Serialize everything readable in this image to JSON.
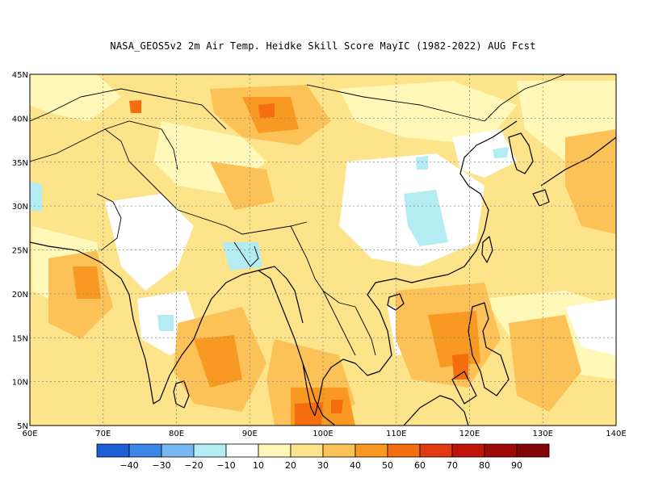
{
  "title": "NASA_GEOS5v2  2m Air Temp. Heidke Skill Score MayIC (1982-2022) AUG Fcst",
  "map": {
    "lon_range": [
      60,
      140
    ],
    "lat_range": [
      5,
      45
    ],
    "lon_ticks": [
      {
        "value": 60,
        "label": "60E"
      },
      {
        "value": 70,
        "label": "70E"
      },
      {
        "value": 80,
        "label": "80E"
      },
      {
        "value": 90,
        "label": "90E"
      },
      {
        "value": 100,
        "label": "100E"
      },
      {
        "value": 110,
        "label": "110E"
      },
      {
        "value": 120,
        "label": "120E"
      },
      {
        "value": 130,
        "label": "130E"
      },
      {
        "value": 140,
        "label": "140E"
      }
    ],
    "lat_ticks": [
      {
        "value": 5,
        "label": "5N"
      },
      {
        "value": 10,
        "label": "10N"
      },
      {
        "value": 15,
        "label": "15N"
      },
      {
        "value": 20,
        "label": "20N"
      },
      {
        "value": 25,
        "label": "25N"
      },
      {
        "value": 30,
        "label": "30N"
      },
      {
        "value": 35,
        "label": "35N"
      },
      {
        "value": 40,
        "label": "40N"
      },
      {
        "value": 45,
        "label": "45N"
      }
    ]
  },
  "colorbar": {
    "colors": [
      "#1f5fd6",
      "#3b86e6",
      "#78b8f0",
      "#b4ecf4",
      "#ffffff",
      "#fff8b8",
      "#fde48a",
      "#fcc257",
      "#f89a22",
      "#f46e10",
      "#e03a10",
      "#c01408",
      "#a00a06",
      "#820404"
    ],
    "labels": [
      "-40",
      "-30",
      "-20",
      "-10",
      "10",
      "20",
      "30",
      "40",
      "50",
      "60",
      "70",
      "80",
      "90"
    ]
  }
}
